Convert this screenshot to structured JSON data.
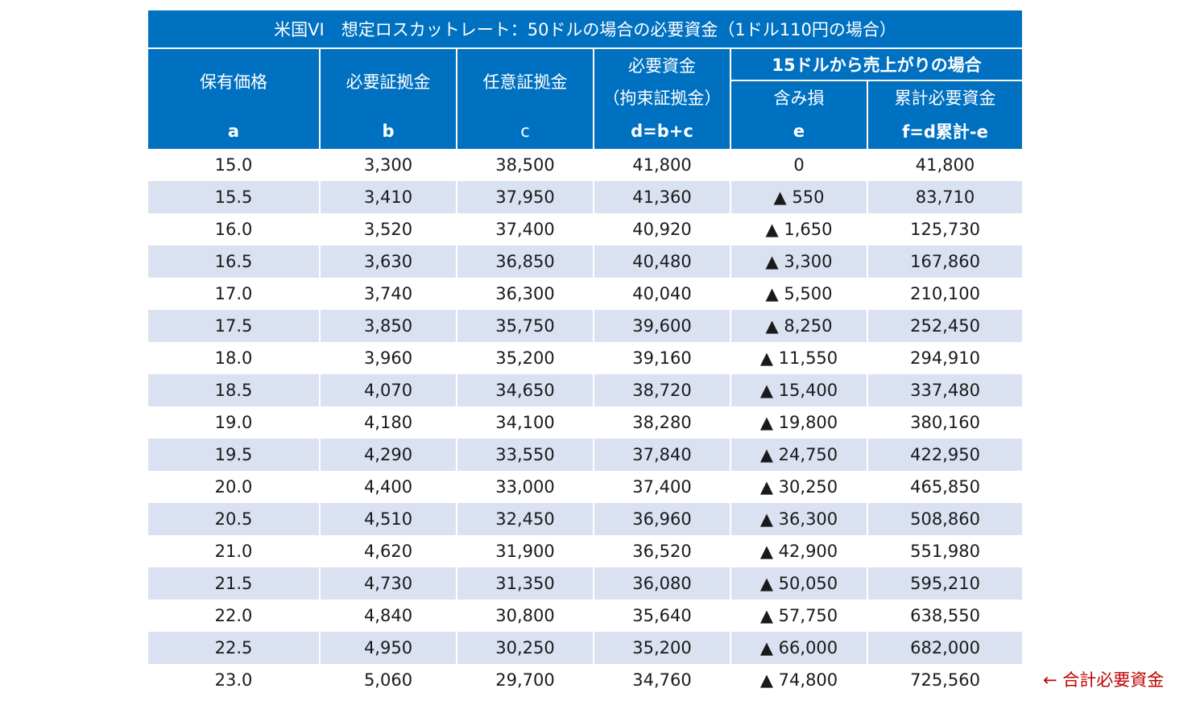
{
  "title": "米国VI　想定ロスカットレート：50ドルの場合の必要資金（1ドル110円の場合）",
  "headers": {
    "a_label": "保有価格",
    "b_label": "必要証拠金",
    "c_label": "任意証拠金",
    "d_label_1": "必要資金",
    "d_label_2": "（拘束証拠金）",
    "group_label": "15ドルから売上がりの場合",
    "e_label": "含み損",
    "f_label": "累計必要資金",
    "a_code": "a",
    "b_code": "b",
    "c_code": "c",
    "d_code": "d=b+c",
    "e_code": "e",
    "f_code": "f=d累計-e"
  },
  "rows": [
    [
      "15.0",
      "3,300",
      "38,500",
      "41,800",
      "0",
      "41,800"
    ],
    [
      "15.5",
      "3,410",
      "37,950",
      "41,360",
      "▲ 550",
      "83,710"
    ],
    [
      "16.0",
      "3,520",
      "37,400",
      "40,920",
      "▲ 1,650",
      "125,730"
    ],
    [
      "16.5",
      "3,630",
      "36,850",
      "40,480",
      "▲ 3,300",
      "167,860"
    ],
    [
      "17.0",
      "3,740",
      "36,300",
      "40,040",
      "▲ 5,500",
      "210,100"
    ],
    [
      "17.5",
      "3,850",
      "35,750",
      "39,600",
      "▲ 8,250",
      "252,450"
    ],
    [
      "18.0",
      "3,960",
      "35,200",
      "39,160",
      "▲ 11,550",
      "294,910"
    ],
    [
      "18.5",
      "4,070",
      "34,650",
      "38,720",
      "▲ 15,400",
      "337,480"
    ],
    [
      "19.0",
      "4,180",
      "34,100",
      "38,280",
      "▲ 19,800",
      "380,160"
    ],
    [
      "19.5",
      "4,290",
      "33,550",
      "37,840",
      "▲ 24,750",
      "422,950"
    ],
    [
      "20.0",
      "4,400",
      "33,000",
      "37,400",
      "▲ 30,250",
      "465,850"
    ],
    [
      "20.5",
      "4,510",
      "32,450",
      "36,960",
      "▲ 36,300",
      "508,860"
    ],
    [
      "21.0",
      "4,620",
      "31,900",
      "36,520",
      "▲ 42,900",
      "551,980"
    ],
    [
      "21.5",
      "4,730",
      "31,350",
      "36,080",
      "▲ 50,050",
      "595,210"
    ],
    [
      "22.0",
      "4,840",
      "30,800",
      "35,640",
      "▲ 57,750",
      "638,550"
    ],
    [
      "22.5",
      "4,950",
      "30,250",
      "35,200",
      "▲ 66,000",
      "682,000"
    ],
    [
      "23.0",
      "5,060",
      "29,700",
      "34,760",
      "▲ 74,800",
      "725,560"
    ]
  ],
  "note": "← 合計必要資金",
  "colors": {
    "header_bg": "#0070c0",
    "header_text": "#ffffff",
    "stripe": "#dae1f0",
    "note": "#c00000"
  }
}
